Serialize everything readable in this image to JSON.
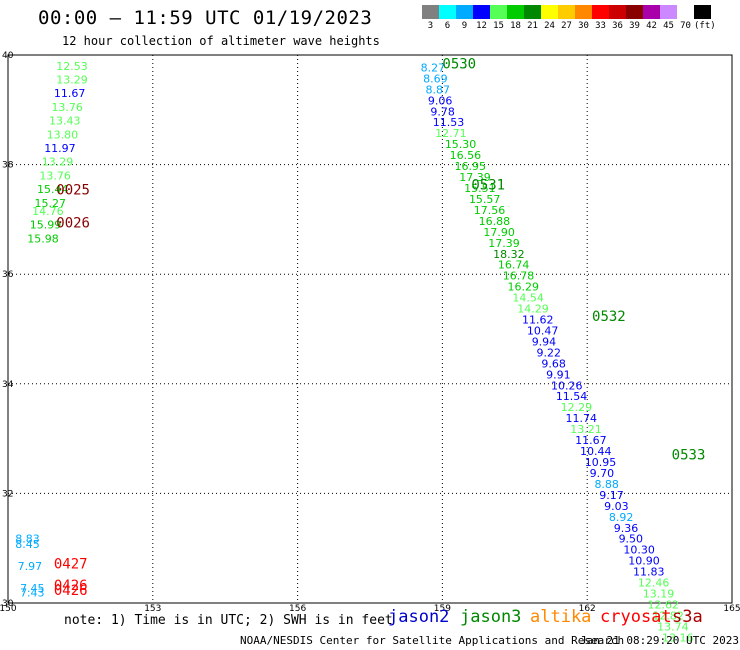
{
  "header": {
    "title": "00:00 – 11:59 UTC 01/19/2023",
    "subtitle": "12 hour collection of altimeter wave heights"
  },
  "colorbar": {
    "colors": [
      "#808080",
      "#00ffff",
      "#00aaff",
      "#0000ff",
      "#55ff55",
      "#00cc00",
      "#008800",
      "#ffff00",
      "#ffcc00",
      "#ff8800",
      "#ff0000",
      "#cc0000",
      "#880000",
      "#aa00aa",
      "#cc88ff",
      "#ffffff",
      "#000000"
    ],
    "labels": [
      "3",
      "6",
      "9",
      "12",
      "15",
      "18",
      "21",
      "24",
      "27",
      "30",
      "33",
      "36",
      "39",
      "42",
      "45",
      "70",
      "(ft)"
    ]
  },
  "chart_data": {
    "type": "map",
    "xlim": [
      150,
      165
    ],
    "ylim": [
      30,
      40
    ],
    "x_ticks": [
      "150",
      "153",
      "156",
      "159",
      "162",
      "165"
    ],
    "y_ticks": [
      "30",
      "32",
      "34",
      "36",
      "38",
      "40"
    ],
    "grid": true,
    "track_points": [
      {
        "lon": 151.0,
        "lat": 39.73,
        "value": "12.53",
        "color": "#55ff55"
      },
      {
        "lon": 151.0,
        "lat": 39.48,
        "value": "13.29",
        "color": "#55ff55"
      },
      {
        "lon": 150.95,
        "lat": 39.23,
        "value": "11.67",
        "color": "#0000ff"
      },
      {
        "lon": 150.9,
        "lat": 38.98,
        "value": "13.76",
        "color": "#55ff55"
      },
      {
        "lon": 150.85,
        "lat": 38.73,
        "value": "13.43",
        "color": "#55ff55"
      },
      {
        "lon": 150.8,
        "lat": 38.48,
        "value": "13.80",
        "color": "#55ff55"
      },
      {
        "lon": 150.75,
        "lat": 38.23,
        "value": "11.97",
        "color": "#0000ff"
      },
      {
        "lon": 150.7,
        "lat": 37.98,
        "value": "13.29",
        "color": "#55ff55"
      },
      {
        "lon": 150.65,
        "lat": 37.73,
        "value": "13.76",
        "color": "#55ff55"
      },
      {
        "lon": 150.6,
        "lat": 37.48,
        "value": "15.44",
        "color": "#00cc00"
      },
      {
        "lon": 150.55,
        "lat": 37.23,
        "value": "15.27",
        "color": "#00cc00"
      },
      {
        "lon": 150.5,
        "lat": 37.08,
        "value": "14.76",
        "color": "#55ff55"
      },
      {
        "lon": 150.45,
        "lat": 36.83,
        "value": "15.99",
        "color": "#00cc00"
      },
      {
        "lon": 150.4,
        "lat": 36.58,
        "value": "15.98",
        "color": "#00cc00"
      },
      {
        "lon": 158.55,
        "lat": 39.7,
        "value": "8.27",
        "color": "#00aaff"
      },
      {
        "lon": 158.6,
        "lat": 39.5,
        "value": "8.69",
        "color": "#00aaff"
      },
      {
        "lon": 158.65,
        "lat": 39.3,
        "value": "8.87",
        "color": "#00aaff"
      },
      {
        "lon": 158.7,
        "lat": 39.1,
        "value": "9.06",
        "color": "#0000ff"
      },
      {
        "lon": 158.75,
        "lat": 38.9,
        "value": "9.78",
        "color": "#0000ff"
      },
      {
        "lon": 158.8,
        "lat": 38.7,
        "value": "11.53",
        "color": "#0000ff"
      },
      {
        "lon": 158.85,
        "lat": 38.5,
        "value": "12.71",
        "color": "#55ff55"
      },
      {
        "lon": 159.05,
        "lat": 38.3,
        "value": "15.30",
        "color": "#00cc00"
      },
      {
        "lon": 159.15,
        "lat": 38.1,
        "value": "16.56",
        "color": "#00cc00"
      },
      {
        "lon": 159.25,
        "lat": 37.9,
        "value": "16.95",
        "color": "#00cc00"
      },
      {
        "lon": 159.35,
        "lat": 37.7,
        "value": "17.39",
        "color": "#00cc00"
      },
      {
        "lon": 159.45,
        "lat": 37.5,
        "value": "15.51",
        "color": "#00cc00"
      },
      {
        "lon": 159.55,
        "lat": 37.3,
        "value": "15.57",
        "color": "#00cc00"
      },
      {
        "lon": 159.65,
        "lat": 37.1,
        "value": "17.56",
        "color": "#00cc00"
      },
      {
        "lon": 159.75,
        "lat": 36.9,
        "value": "16.88",
        "color": "#00cc00"
      },
      {
        "lon": 159.85,
        "lat": 36.7,
        "value": "17.90",
        "color": "#00cc00"
      },
      {
        "lon": 159.95,
        "lat": 36.5,
        "value": "17.39",
        "color": "#00cc00"
      },
      {
        "lon": 160.05,
        "lat": 36.3,
        "value": "18.32",
        "color": "#008800"
      },
      {
        "lon": 160.15,
        "lat": 36.1,
        "value": "16.74",
        "color": "#00cc00"
      },
      {
        "lon": 160.25,
        "lat": 35.9,
        "value": "16.78",
        "color": "#00cc00"
      },
      {
        "lon": 160.35,
        "lat": 35.7,
        "value": "16.29",
        "color": "#00cc00"
      },
      {
        "lon": 160.45,
        "lat": 35.5,
        "value": "14.54",
        "color": "#55ff55"
      },
      {
        "lon": 160.55,
        "lat": 35.3,
        "value": "14.29",
        "color": "#55ff55"
      },
      {
        "lon": 160.65,
        "lat": 35.1,
        "value": "11.62",
        "color": "#0000ff"
      },
      {
        "lon": 160.75,
        "lat": 34.9,
        "value": "10.47",
        "color": "#0000ff"
      },
      {
        "lon": 160.85,
        "lat": 34.7,
        "value": "9.94",
        "color": "#0000ff"
      },
      {
        "lon": 160.95,
        "lat": 34.5,
        "value": "9.22",
        "color": "#0000ff"
      },
      {
        "lon": 161.05,
        "lat": 34.3,
        "value": "9.68",
        "color": "#0000ff"
      },
      {
        "lon": 161.15,
        "lat": 34.1,
        "value": "9.91",
        "color": "#0000ff"
      },
      {
        "lon": 161.25,
        "lat": 33.9,
        "value": "10.26",
        "color": "#0000ff"
      },
      {
        "lon": 161.35,
        "lat": 33.7,
        "value": "11.54",
        "color": "#0000ff"
      },
      {
        "lon": 161.45,
        "lat": 33.5,
        "value": "12.29",
        "color": "#55ff55"
      },
      {
        "lon": 161.55,
        "lat": 33.3,
        "value": "11.74",
        "color": "#0000ff"
      },
      {
        "lon": 161.65,
        "lat": 33.1,
        "value": "13.21",
        "color": "#55ff55"
      },
      {
        "lon": 161.75,
        "lat": 32.9,
        "value": "11.67",
        "color": "#0000ff"
      },
      {
        "lon": 161.85,
        "lat": 32.7,
        "value": "10.44",
        "color": "#0000ff"
      },
      {
        "lon": 161.95,
        "lat": 32.5,
        "value": "10.95",
        "color": "#0000ff"
      },
      {
        "lon": 162.05,
        "lat": 32.3,
        "value": "9.70",
        "color": "#0000ff"
      },
      {
        "lon": 162.15,
        "lat": 32.1,
        "value": "8.88",
        "color": "#00aaff"
      },
      {
        "lon": 162.25,
        "lat": 31.9,
        "value": "9.17",
        "color": "#0000ff"
      },
      {
        "lon": 162.35,
        "lat": 31.7,
        "value": "9.03",
        "color": "#0000ff"
      },
      {
        "lon": 162.45,
        "lat": 31.5,
        "value": "8.92",
        "color": "#00aaff"
      },
      {
        "lon": 162.55,
        "lat": 31.3,
        "value": "9.36",
        "color": "#0000ff"
      },
      {
        "lon": 162.65,
        "lat": 31.1,
        "value": "9.50",
        "color": "#0000ff"
      },
      {
        "lon": 162.75,
        "lat": 30.9,
        "value": "10.30",
        "color": "#0000ff"
      },
      {
        "lon": 162.85,
        "lat": 30.7,
        "value": "10.90",
        "color": "#0000ff"
      },
      {
        "lon": 162.95,
        "lat": 30.5,
        "value": "11.83",
        "color": "#0000ff"
      },
      {
        "lon": 163.05,
        "lat": 30.3,
        "value": "12.46",
        "color": "#55ff55"
      },
      {
        "lon": 163.15,
        "lat": 30.1,
        "value": "13.19",
        "color": "#55ff55"
      },
      {
        "lon": 163.25,
        "lat": 29.9,
        "value": "12.62",
        "color": "#55ff55"
      },
      {
        "lon": 163.35,
        "lat": 29.7,
        "value": "12.82",
        "color": "#55ff55"
      },
      {
        "lon": 163.45,
        "lat": 29.5,
        "value": "13.74",
        "color": "#55ff55"
      },
      {
        "lon": 163.55,
        "lat": 29.3,
        "value": "13.16",
        "color": "#55ff55"
      },
      {
        "lon": 150.15,
        "lat": 31.1,
        "value": "8.83",
        "color": "#00aaff"
      },
      {
        "lon": 150.15,
        "lat": 31.0,
        "value": "8.45",
        "color": "#00aaff"
      },
      {
        "lon": 150.2,
        "lat": 30.6,
        "value": "7.97",
        "color": "#00aaff"
      },
      {
        "lon": 150.25,
        "lat": 30.2,
        "value": "7.45",
        "color": "#00aaff"
      },
      {
        "lon": 150.25,
        "lat": 30.12,
        "value": "7.43",
        "color": "#00aaff"
      }
    ],
    "time_labels": [
      {
        "lon": 151.0,
        "lat": 37.45,
        "value": "0025",
        "color": "#880000"
      },
      {
        "lon": 151.0,
        "lat": 36.85,
        "value": "0026",
        "color": "#880000"
      },
      {
        "lon": 159.0,
        "lat": 39.75,
        "value": "0530",
        "color": "#008800"
      },
      {
        "lon": 159.6,
        "lat": 37.55,
        "value": "0531",
        "color": "#008800"
      },
      {
        "lon": 162.1,
        "lat": 35.15,
        "value": "0532",
        "color": "#008800"
      },
      {
        "lon": 163.75,
        "lat": 32.62,
        "value": "0533",
        "color": "#008800"
      },
      {
        "lon": 150.95,
        "lat": 30.63,
        "value": "0427",
        "color": "#ff0000"
      },
      {
        "lon": 150.95,
        "lat": 30.24,
        "value": "0426",
        "color": "#ff0000"
      },
      {
        "lon": 150.95,
        "lat": 30.15,
        "value": "0426",
        "color": "#ff0000"
      }
    ]
  },
  "note": "note: 1) Time is in UTC; 2) SWH is in feet",
  "legend": [
    {
      "name": "jason2",
      "color": "#0000cc"
    },
    {
      "name": "jason3",
      "color": "#008800"
    },
    {
      "name": "altika",
      "color": "#ff8800"
    },
    {
      "name": "cryosat",
      "color": "#ff0000"
    },
    {
      "name": "s3a",
      "color": "#aa0000"
    }
  ],
  "footer": {
    "credit": "NOAA/NESDIS Center for Satellite Applications and Research",
    "timestamp": "Jan 21 08:29:20 UTC 2023"
  }
}
